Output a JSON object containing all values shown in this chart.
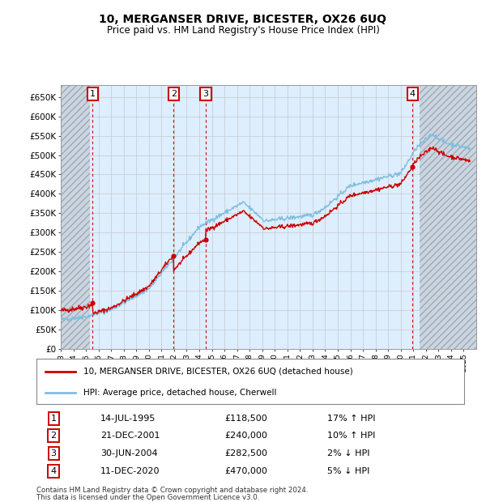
{
  "title1": "10, MERGANSER DRIVE, BICESTER, OX26 6UQ",
  "title2": "Price paid vs. HM Land Registry's House Price Index (HPI)",
  "ylim": [
    0,
    680000
  ],
  "xlim_start": 1993.0,
  "xlim_end": 2026.0,
  "sale_dates": [
    1995.54,
    2001.97,
    2004.5,
    2020.95
  ],
  "sale_prices": [
    118500,
    240000,
    282500,
    470000
  ],
  "sale_labels": [
    "1",
    "2",
    "3",
    "4"
  ],
  "legend_line1": "10, MERGANSER DRIVE, BICESTER, OX26 6UQ (detached house)",
  "legend_line2": "HPI: Average price, detached house, Cherwell",
  "table_data": [
    [
      "1",
      "14-JUL-1995",
      "£118,500",
      "17% ↑ HPI"
    ],
    [
      "2",
      "21-DEC-2001",
      "£240,000",
      "10% ↑ HPI"
    ],
    [
      "3",
      "30-JUN-2004",
      "£282,500",
      "2% ↓ HPI"
    ],
    [
      "4",
      "11-DEC-2020",
      "£470,000",
      "5% ↓ HPI"
    ]
  ],
  "footnote1": "Contains HM Land Registry data © Crown copyright and database right 2024.",
  "footnote2": "This data is licensed under the Open Government Licence v3.0.",
  "hpi_color": "#7fbfdf",
  "price_color": "#cc0000",
  "vline_color": "#cc0000",
  "box_edgecolor": "#cc0000",
  "grid_color": "#c8c8c8",
  "hatch_color": "#b0b8c0",
  "chart_bg": "#ddeeff",
  "hatch_bg": "#d0d8e0",
  "ytick_labels": [
    "£0",
    "£50K",
    "£100K",
    "£150K",
    "£200K",
    "£250K",
    "£300K",
    "£350K",
    "£400K",
    "£450K",
    "£500K",
    "£550K",
    "£600K",
    "£650K"
  ],
  "ytick_vals": [
    0,
    50000,
    100000,
    150000,
    200000,
    250000,
    300000,
    350000,
    400000,
    450000,
    500000,
    550000,
    600000,
    650000
  ],
  "xtick_years": [
    1993,
    1994,
    1995,
    1996,
    1997,
    1998,
    1999,
    2000,
    2001,
    2002,
    2003,
    2004,
    2005,
    2006,
    2007,
    2008,
    2009,
    2010,
    2011,
    2012,
    2013,
    2014,
    2015,
    2016,
    2017,
    2018,
    2019,
    2020,
    2021,
    2022,
    2023,
    2024,
    2025
  ]
}
